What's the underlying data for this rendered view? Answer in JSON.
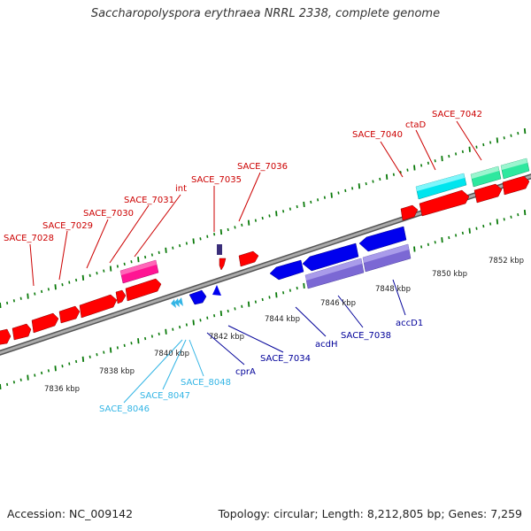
{
  "title": "Saccharopolyspora erythraea NRRL 2338, complete genome",
  "footer": {
    "accession": "Accession: NC_009142",
    "summary": "Topology: circular; Length: 8,212,805 bp; Genes: 7,259"
  },
  "colors": {
    "cds": "#ff0000",
    "cds_reverse": "#0000ee",
    "rna_forward": "#ff1493",
    "rna_reverse": "#8b6bd6",
    "label_forward": "#cc0000",
    "label_reverse": "#000099",
    "label_trna": "#33b5e5",
    "backbone": "#888888",
    "ticks": "#0a7a0a"
  },
  "scale_labels": [
    "7836 kbp",
    "7838 kbp",
    "7840 kbp",
    "7842 kbp",
    "7844 kbp",
    "7846 kbp",
    "7848 kbp",
    "7850 kbp",
    "7852 kbp"
  ],
  "forward_labels": [
    "SACE_7028",
    "SACE_7029",
    "SACE_7030",
    "SACE_7031",
    "int",
    "SACE_7035",
    "SACE_7036",
    "SACE_7040",
    "ctaD",
    "SACE_7042"
  ],
  "reverse_labels": [
    "SACE_7034",
    "cprA",
    "acdH",
    "SACE_7038",
    "accD1"
  ],
  "trna_labels": [
    "SACE_8046",
    "SACE_8047",
    "SACE_8048"
  ]
}
